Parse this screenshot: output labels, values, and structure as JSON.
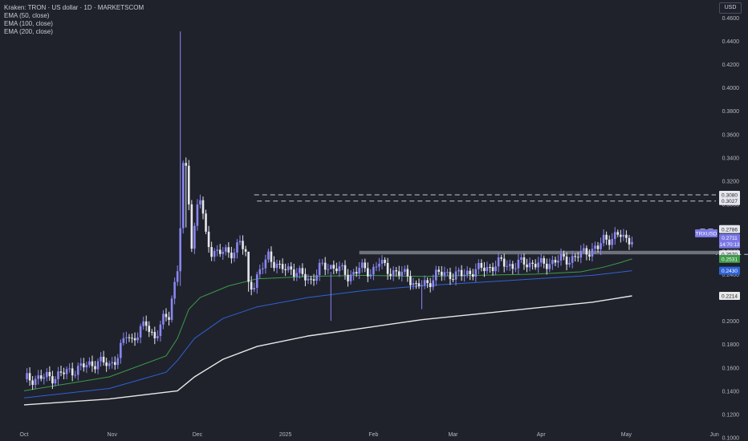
{
  "legend": {
    "title": "Kraken: TRON · US dollar · 1D · MARKETSCOM",
    "ema50": "EMA (50, close)",
    "ema100": "EMA (100, close)",
    "ema200": "EMA (200, close)"
  },
  "currency_button": "USD",
  "colors": {
    "background": "#1f222b",
    "candle_up": "#8a86f0",
    "candle_down": "#e6e7ee",
    "ema50": "#3e9a4a",
    "ema100": "#2f62d8",
    "ema200": "#e8e8e8",
    "dashed": "#c4c7cf",
    "zone": "#8a8d96"
  },
  "chart_data": {
    "type": "candlestick",
    "symbol": "TRXUSD",
    "y_ticks": [
      0.1,
      0.12,
      0.14,
      0.16,
      0.18,
      0.2,
      0.22,
      0.24,
      0.26,
      0.28,
      0.3,
      0.32,
      0.34,
      0.36,
      0.38,
      0.4,
      0.42,
      0.44,
      0.46
    ],
    "ylim": [
      0.097,
      0.475
    ],
    "x_labels": [
      {
        "label": "Oct",
        "day": 0
      },
      {
        "label": "Nov",
        "day": 31
      },
      {
        "label": "Dec",
        "day": 61
      },
      {
        "label": "2025",
        "day": 92
      },
      {
        "label": "Feb",
        "day": 123
      },
      {
        "label": "Mar",
        "day": 151
      },
      {
        "label": "Apr",
        "day": 182
      },
      {
        "label": "May",
        "day": 212
      },
      {
        "label": "Jun",
        "day": 243
      }
    ],
    "price_labels": [
      {
        "text": "0.3080",
        "value": 0.308,
        "kind": "level"
      },
      {
        "text": "0.3027",
        "value": 0.3027,
        "kind": "level"
      },
      {
        "text": "0.2786",
        "value": 0.2786,
        "kind": "level"
      },
      {
        "text": "TRXUSD",
        "value": 0.275,
        "kind": "symbol"
      },
      {
        "text": "0.2711",
        "value": 0.2711,
        "kind": "price"
      },
      {
        "text": "14:70:13",
        "value": 0.2656,
        "kind": "countdown"
      },
      {
        "text": "0.2570",
        "value": 0.257,
        "kind": "level"
      },
      {
        "text": "0.2531",
        "value": 0.2531,
        "kind": "ema50"
      },
      {
        "text": "0.2430",
        "value": 0.243,
        "kind": "ema100"
      },
      {
        "text": "0.2214",
        "value": 0.2214,
        "kind": "ema200"
      }
    ],
    "anchors": [
      [
        0,
        0.15
      ],
      [
        10,
        0.152
      ],
      [
        20,
        0.16
      ],
      [
        26,
        0.165
      ],
      [
        30,
        0.162
      ],
      [
        33,
        0.17
      ],
      [
        36,
        0.188
      ],
      [
        38,
        0.184
      ],
      [
        43,
        0.197
      ],
      [
        46,
        0.186
      ],
      [
        49,
        0.2
      ],
      [
        51,
        0.205
      ],
      [
        52,
        0.22
      ],
      [
        54,
        0.245
      ],
      [
        55,
        0.28
      ],
      [
        56,
        0.33
      ],
      [
        57,
        0.33
      ],
      [
        58,
        0.304
      ],
      [
        59,
        0.265
      ],
      [
        60,
        0.28
      ],
      [
        61,
        0.3
      ],
      [
        62,
        0.305
      ],
      [
        64,
        0.272
      ],
      [
        66,
        0.26
      ],
      [
        70,
        0.258
      ],
      [
        74,
        0.26
      ],
      [
        76,
        0.268
      ],
      [
        78,
        0.256
      ],
      [
        79,
        0.232
      ],
      [
        81,
        0.232
      ],
      [
        84,
        0.246
      ],
      [
        86,
        0.257
      ],
      [
        90,
        0.244
      ],
      [
        94,
        0.245
      ],
      [
        98,
        0.238
      ],
      [
        101,
        0.235
      ],
      [
        104,
        0.245
      ],
      [
        108,
        0.247
      ],
      [
        110,
        0.246
      ],
      [
        114,
        0.238
      ],
      [
        118,
        0.245
      ],
      [
        122,
        0.242
      ],
      [
        125,
        0.25
      ],
      [
        128,
        0.244
      ],
      [
        132,
        0.24
      ],
      [
        135,
        0.24
      ],
      [
        138,
        0.229
      ],
      [
        142,
        0.232
      ],
      [
        145,
        0.24
      ],
      [
        150,
        0.24
      ],
      [
        154,
        0.239
      ],
      [
        158,
        0.243
      ],
      [
        164,
        0.246
      ],
      [
        168,
        0.25
      ],
      [
        172,
        0.247
      ],
      [
        176,
        0.25
      ],
      [
        182,
        0.248
      ],
      [
        188,
        0.252
      ],
      [
        194,
        0.254
      ],
      [
        198,
        0.26
      ],
      [
        202,
        0.262
      ],
      [
        204,
        0.27
      ],
      [
        206,
        0.271
      ],
      [
        210,
        0.273
      ],
      [
        212,
        0.27
      ],
      [
        214,
        0.2711
      ]
    ],
    "wicks": [
      {
        "day": 55,
        "high": 0.448,
        "low": 0.23
      },
      {
        "day": 57,
        "high": 0.34,
        "low": 0.28
      },
      {
        "day": 79,
        "high": 0.24,
        "low": 0.225
      },
      {
        "day": 108,
        "high": 0.242,
        "low": 0.2
      },
      {
        "day": 140,
        "high": 0.235,
        "low": 0.21
      }
    ],
    "ema50": [
      [
        0,
        0.14
      ],
      [
        30,
        0.152
      ],
      [
        50,
        0.17
      ],
      [
        54,
        0.185
      ],
      [
        58,
        0.21
      ],
      [
        62,
        0.22
      ],
      [
        72,
        0.23
      ],
      [
        82,
        0.236
      ],
      [
        100,
        0.238
      ],
      [
        120,
        0.239
      ],
      [
        140,
        0.238
      ],
      [
        160,
        0.239
      ],
      [
        180,
        0.24
      ],
      [
        196,
        0.242
      ],
      [
        204,
        0.246
      ],
      [
        210,
        0.25
      ],
      [
        214,
        0.2531
      ]
    ],
    "ema100": [
      [
        0,
        0.134
      ],
      [
        30,
        0.142
      ],
      [
        50,
        0.156
      ],
      [
        54,
        0.166
      ],
      [
        60,
        0.185
      ],
      [
        70,
        0.202
      ],
      [
        82,
        0.212
      ],
      [
        100,
        0.22
      ],
      [
        120,
        0.226
      ],
      [
        140,
        0.23
      ],
      [
        160,
        0.233
      ],
      [
        180,
        0.236
      ],
      [
        200,
        0.239
      ],
      [
        214,
        0.243
      ]
    ],
    "ema200": [
      [
        0,
        0.128
      ],
      [
        30,
        0.133
      ],
      [
        54,
        0.14
      ],
      [
        60,
        0.152
      ],
      [
        70,
        0.167
      ],
      [
        82,
        0.178
      ],
      [
        100,
        0.187
      ],
      [
        120,
        0.194
      ],
      [
        140,
        0.201
      ],
      [
        160,
        0.206
      ],
      [
        180,
        0.211
      ],
      [
        200,
        0.216
      ],
      [
        214,
        0.2214
      ]
    ],
    "levels": [
      0.308,
      0.3027,
      0.2786,
      0.257
    ],
    "support_zone": {
      "top": 0.26,
      "bottom": 0.257
    }
  }
}
